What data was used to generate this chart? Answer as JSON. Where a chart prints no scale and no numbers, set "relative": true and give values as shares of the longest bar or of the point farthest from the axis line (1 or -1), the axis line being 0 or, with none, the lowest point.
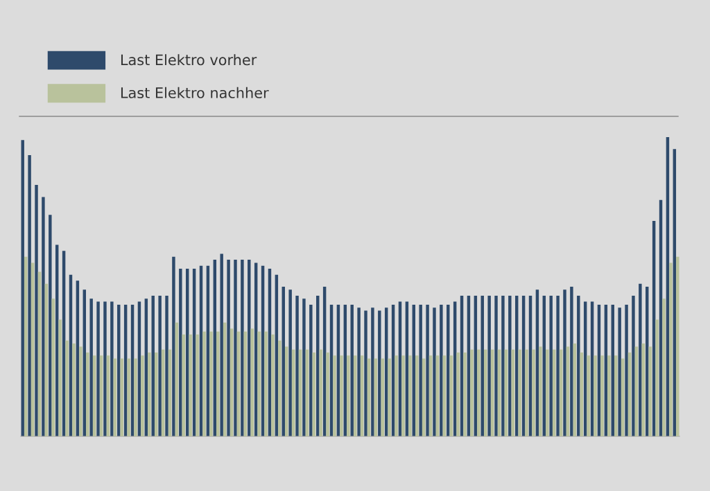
{
  "chart_data": {
    "type": "bar",
    "relative": true,
    "legend": "top left",
    "categories": [
      null,
      null,
      null,
      null,
      null,
      null,
      null,
      null,
      null,
      null,
      null,
      null,
      null,
      null,
      null,
      null,
      null,
      null,
      null,
      null,
      null,
      null,
      null,
      null,
      null,
      null,
      null,
      null,
      null,
      null,
      null,
      null,
      null,
      null,
      null,
      null,
      null,
      null,
      null,
      null,
      null,
      null,
      null,
      null,
      null,
      null,
      null,
      null,
      null,
      null,
      null,
      null,
      null,
      null,
      null,
      null,
      null,
      null,
      null,
      null,
      null,
      null,
      null,
      null,
      null,
      null,
      null,
      null,
      null,
      null,
      null,
      null,
      null,
      null,
      null,
      null,
      null,
      null,
      null,
      null,
      null,
      null,
      null,
      null,
      null,
      null,
      null,
      null,
      null,
      null,
      null,
      null,
      null,
      null,
      null,
      null
    ],
    "series": [
      {
        "name": "Last Elektro vorher",
        "color": "#2e4a6b",
        "values": [
          0.99,
          0.94,
          0.84,
          0.8,
          0.74,
          0.64,
          0.62,
          0.54,
          0.52,
          0.49,
          0.46,
          0.45,
          0.45,
          0.45,
          0.44,
          0.44,
          0.44,
          0.45,
          0.46,
          0.47,
          0.47,
          0.47,
          0.6,
          0.56,
          0.56,
          0.56,
          0.57,
          0.57,
          0.59,
          0.61,
          0.59,
          0.59,
          0.59,
          0.59,
          0.58,
          0.57,
          0.56,
          0.54,
          0.5,
          0.49,
          0.47,
          0.46,
          0.44,
          0.47,
          0.5,
          0.44,
          0.44,
          0.44,
          0.44,
          0.43,
          0.42,
          0.43,
          0.42,
          0.43,
          0.44,
          0.45,
          0.45,
          0.44,
          0.44,
          0.44,
          0.43,
          0.44,
          0.44,
          0.45,
          0.47,
          0.47,
          0.47,
          0.47,
          0.47,
          0.47,
          0.47,
          0.47,
          0.47,
          0.47,
          0.47,
          0.49,
          0.47,
          0.47,
          0.47,
          0.49,
          0.5,
          0.47,
          0.45,
          0.45,
          0.44,
          0.44,
          0.44,
          0.43,
          0.44,
          0.47,
          0.51,
          0.5,
          0.72,
          0.79,
          1.0,
          0.96
        ]
      },
      {
        "name": "Last Elektro nachher",
        "color": "#b9c29c",
        "values": [
          0.6,
          0.58,
          0.55,
          0.51,
          0.46,
          0.39,
          0.32,
          0.31,
          0.3,
          0.28,
          0.27,
          0.27,
          0.27,
          0.26,
          0.26,
          0.26,
          0.26,
          0.27,
          0.28,
          0.28,
          0.29,
          0.29,
          0.38,
          0.34,
          0.34,
          0.34,
          0.35,
          0.35,
          0.35,
          0.38,
          0.36,
          0.35,
          0.35,
          0.36,
          0.35,
          0.35,
          0.34,
          0.32,
          0.3,
          0.29,
          0.29,
          0.29,
          0.28,
          0.29,
          0.28,
          0.27,
          0.27,
          0.27,
          0.27,
          0.27,
          0.26,
          0.26,
          0.26,
          0.26,
          0.27,
          0.27,
          0.27,
          0.27,
          0.26,
          0.27,
          0.27,
          0.27,
          0.27,
          0.28,
          0.28,
          0.29,
          0.29,
          0.29,
          0.29,
          0.29,
          0.29,
          0.29,
          0.29,
          0.29,
          0.29,
          0.3,
          0.29,
          0.29,
          0.29,
          0.3,
          0.31,
          0.28,
          0.27,
          0.27,
          0.27,
          0.27,
          0.27,
          0.26,
          0.28,
          0.3,
          0.31,
          0.3,
          0.39,
          0.46,
          0.58,
          0.6
        ]
      }
    ]
  }
}
